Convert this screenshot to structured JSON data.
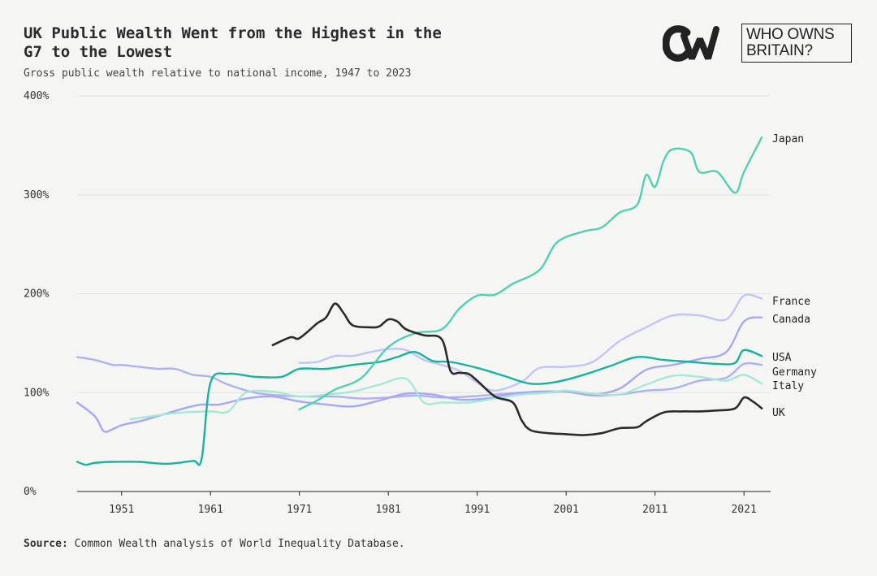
{
  "header": {
    "title": "UK Public Wealth Went from the Highest in the\nG7 to the Lowest",
    "subtitle": "Gross public wealth relative to national income, 1947 to 2023"
  },
  "logo": {
    "line1": "WHO OWNS",
    "line2": "BRITAIN?"
  },
  "footer": {
    "source_label": "Source:",
    "source_text": " Common Wealth analysis of World Inequality Database."
  },
  "chart_data": {
    "type": "line",
    "title": "UK Public Wealth Went from the Highest in the G7 to the Lowest",
    "subtitle": "Gross public wealth relative to national income, 1947 to 2023",
    "xlim": [
      1946,
      2024
    ],
    "ylim": [
      0,
      400
    ],
    "x_ticks": [
      1951,
      1961,
      1971,
      1981,
      1991,
      2001,
      2011,
      2021
    ],
    "y_ticks": [
      0,
      100,
      200,
      300,
      400
    ],
    "y_tick_labels": [
      "0%",
      "100%",
      "200%",
      "300%",
      "400%"
    ],
    "grid": true,
    "legend": "direct labels at right end",
    "series": [
      {
        "name": "Germany",
        "color": "#aeb1f2",
        "x": [
          1946,
          1948,
          1950,
          1951,
          1953,
          1955,
          1957,
          1959,
          1961,
          1963,
          1966,
          1969,
          1972,
          1975,
          1978,
          1981,
          1984,
          1987,
          1990,
          1993,
          1996,
          1999,
          2001,
          2004,
          2007,
          2010,
          2013,
          2016,
          2019,
          2021,
          2023
        ],
        "y": [
          136,
          133,
          128,
          128,
          126,
          124,
          124,
          118,
          116,
          108,
          100,
          97,
          96,
          96,
          94,
          95,
          97,
          95,
          96,
          98,
          100,
          100,
          101,
          97,
          98,
          102,
          104,
          112,
          115,
          129,
          128
        ]
      },
      {
        "name": "Canada",
        "color": "#a7a8f0",
        "x": [
          1946,
          1948,
          1949,
          1950,
          1951,
          1953,
          1955,
          1958,
          1960,
          1962,
          1965,
          1968,
          1971,
          1974,
          1977,
          1980,
          1983,
          1986,
          1989,
          1992,
          1995,
          1998,
          2001,
          2004,
          2007,
          2010,
          2013,
          2016,
          2019,
          2021,
          2023
        ],
        "y": [
          90,
          76,
          61,
          63,
          67,
          71,
          76,
          84,
          88,
          88,
          94,
          96,
          91,
          88,
          86,
          92,
          99,
          98,
          93,
          94,
          99,
          101,
          101,
          98,
          104,
          123,
          128,
          134,
          141,
          172,
          176
        ]
      },
      {
        "name": "France",
        "color": "#c3c5f5",
        "x": [
          1971,
          1973,
          1975,
          1977,
          1979,
          1981,
          1983,
          1985,
          1987,
          1989,
          1991,
          1993,
          1996,
          1998,
          2001,
          2004,
          2007,
          2010,
          2013,
          2016,
          2019,
          2021,
          2023
        ],
        "y": [
          130,
          131,
          137,
          137,
          141,
          144,
          143,
          133,
          128,
          122,
          110,
          102,
          111,
          125,
          126,
          131,
          152,
          166,
          178,
          178,
          174,
          198,
          195
        ]
      },
      {
        "name": "Italy",
        "color": "#a6e8d6",
        "x": [
          1952,
          1955,
          1958,
          1961,
          1963,
          1965,
          1968,
          1971,
          1974,
          1977,
          1980,
          1983,
          1985,
          1987,
          1990,
          1993,
          1996,
          1999,
          2001,
          2004,
          2007,
          2010,
          2013,
          2016,
          2019,
          2021,
          2023
        ],
        "y": [
          73,
          77,
          80,
          81,
          81,
          100,
          101,
          96,
          98,
          101,
          108,
          114,
          90,
          90,
          90,
          94,
          98,
          100,
          102,
          99,
          98,
          108,
          117,
          116,
          112,
          118,
          109
        ]
      },
      {
        "name": "USA",
        "color": "#17b39e",
        "x": [
          1946,
          1947,
          1948,
          1950,
          1953,
          1956,
          1959,
          1960,
          1961,
          1963,
          1966,
          1969,
          1971,
          1974,
          1977,
          1980,
          1982,
          1984,
          1986,
          1988,
          1991,
          1994,
          1997,
          2000,
          2003,
          2006,
          2009,
          2012,
          2015,
          2018,
          2020,
          2021,
          2023
        ],
        "y": [
          30,
          27,
          29,
          30,
          30,
          28,
          31,
          33,
          110,
          119,
          116,
          116,
          124,
          124,
          128,
          131,
          136,
          141,
          132,
          131,
          125,
          117,
          109,
          111,
          118,
          127,
          136,
          133,
          131,
          129,
          130,
          143,
          137
        ]
      },
      {
        "name": "Japan",
        "color": "#52cfb4",
        "x": [
          1971,
          1973,
          1975,
          1978,
          1981,
          1984,
          1987,
          1989,
          1991,
          1993,
          1995,
          1998,
          2000,
          2003,
          2005,
          2007,
          2009,
          2010,
          2011,
          2012,
          2013,
          2015,
          2016,
          2018,
          2020,
          2021,
          2023
        ],
        "y": [
          83,
          92,
          103,
          115,
          146,
          160,
          164,
          185,
          198,
          199,
          210,
          224,
          252,
          263,
          267,
          282,
          290,
          320,
          308,
          335,
          346,
          343,
          323,
          323,
          302,
          323,
          358
        ]
      },
      {
        "name": "UK",
        "color": "#2b2b2b",
        "x": [
          1968,
          1970,
          1971,
          1973,
          1974,
          1975,
          1976,
          1977,
          1979,
          1980,
          1981,
          1982,
          1983,
          1985,
          1987,
          1988,
          1989,
          1990,
          1991,
          1993,
          1995,
          1996,
          1997,
          1999,
          2001,
          2003,
          2005,
          2007,
          2009,
          2010,
          2012,
          2014,
          2016,
          2018,
          2020,
          2021,
          2022,
          2023
        ],
        "y": [
          148,
          156,
          155,
          170,
          176,
          190,
          180,
          168,
          166,
          167,
          174,
          172,
          164,
          158,
          154,
          122,
          120,
          119,
          112,
          96,
          90,
          72,
          62,
          59,
          58,
          57,
          59,
          64,
          65,
          71,
          80,
          81,
          81,
          82,
          84,
          95,
          91,
          84
        ]
      }
    ]
  }
}
